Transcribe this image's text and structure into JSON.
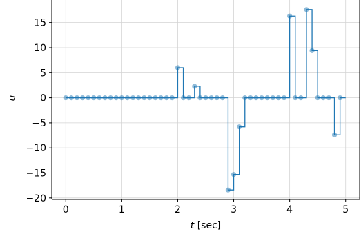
{
  "chart_data": {
    "type": "line",
    "title": "",
    "xlabel_var": "t",
    "xlabel_unit": " [sec]",
    "ylabel": "u",
    "xlim": [
      -0.25,
      5.25
    ],
    "ylim": [
      -20.3,
      19.5
    ],
    "xticks": [
      0,
      1,
      2,
      3,
      4,
      5
    ],
    "yticks": [
      -20,
      -15,
      -10,
      -5,
      0,
      5,
      10,
      15
    ],
    "ytick_labels": [
      "−20",
      "−15",
      "−10",
      "−5",
      "0",
      "5",
      "10",
      "15"
    ],
    "grid": true,
    "colors": {
      "line": "#1f77b4",
      "marker": "#1f77b4"
    },
    "series": [
      {
        "style": "step-post with markers",
        "x": [
          0.0,
          0.1,
          0.2,
          0.3,
          0.4,
          0.5,
          0.6,
          0.7,
          0.8,
          0.9,
          1.0,
          1.1,
          1.2,
          1.3,
          1.4,
          1.5,
          1.6,
          1.7,
          1.8,
          1.9,
          2.0,
          2.1,
          2.2,
          2.3,
          2.4,
          2.5,
          2.6,
          2.7,
          2.8,
          2.9,
          3.0,
          3.1,
          3.2,
          3.3,
          3.4,
          3.5,
          3.6,
          3.7,
          3.8,
          3.9,
          4.0,
          4.1,
          4.2,
          4.3,
          4.4,
          4.5,
          4.6,
          4.7,
          4.8,
          4.9
        ],
        "y": [
          0,
          0,
          0,
          0,
          0,
          0,
          0,
          0,
          0,
          0,
          0,
          0,
          0,
          0,
          0,
          0,
          0,
          0,
          0,
          0,
          6.0,
          0,
          0,
          2.3,
          0,
          0,
          0,
          0,
          0,
          -18.4,
          -15.3,
          -5.8,
          0,
          0,
          0,
          0,
          0,
          0,
          0,
          0,
          16.3,
          0,
          0,
          17.6,
          9.4,
          0,
          0,
          0,
          -7.4,
          0
        ]
      }
    ]
  }
}
